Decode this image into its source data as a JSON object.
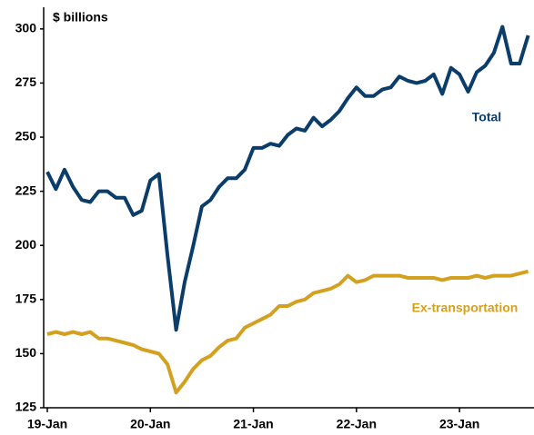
{
  "chart_data": {
    "type": "line",
    "ylabel": "$ billions",
    "categories": [
      "19-Jan",
      null,
      null,
      null,
      null,
      null,
      null,
      null,
      null,
      null,
      null,
      null,
      "20-Jan",
      null,
      null,
      null,
      null,
      null,
      null,
      null,
      null,
      null,
      null,
      null,
      "21-Jan",
      null,
      null,
      null,
      null,
      null,
      null,
      null,
      null,
      null,
      null,
      null,
      "22-Jan",
      null,
      null,
      null,
      null,
      null,
      null,
      null,
      null,
      null,
      null,
      null,
      "23-Jan",
      null,
      null,
      null,
      null,
      null,
      null,
      null,
      null
    ],
    "series": [
      {
        "name": "Total",
        "color": "#0b3d6b",
        "values": [
          234,
          226,
          235,
          227,
          221,
          220,
          225,
          225,
          222,
          222,
          214,
          216,
          230,
          233,
          195,
          161,
          183,
          200,
          218,
          221,
          227,
          231,
          231,
          235,
          245,
          245,
          247,
          246,
          251,
          254,
          253,
          259,
          255,
          258,
          262,
          268,
          273,
          269,
          269,
          272,
          273,
          278,
          276,
          275,
          276,
          279,
          270,
          282,
          279,
          271,
          280,
          283,
          289,
          301,
          284,
          284,
          297
        ]
      },
      {
        "name": "Ex-transportation",
        "color": "#d4a020",
        "values": [
          159,
          160,
          159,
          160,
          159,
          160,
          157,
          157,
          156,
          155,
          154,
          152,
          151,
          150,
          145,
          132,
          137,
          143,
          147,
          149,
          153,
          156,
          157,
          162,
          164,
          166,
          168,
          172,
          172,
          174,
          175,
          178,
          179,
          180,
          182,
          186,
          183,
          184,
          186,
          186,
          186,
          186,
          185,
          185,
          185,
          185,
          184,
          185,
          185,
          185,
          186,
          185,
          186,
          186,
          186,
          187,
          188
        ]
      }
    ],
    "ylim": [
      125,
      310
    ],
    "yticks": [
      125,
      150,
      175,
      200,
      225,
      250,
      275,
      300
    ],
    "grid": false
  }
}
